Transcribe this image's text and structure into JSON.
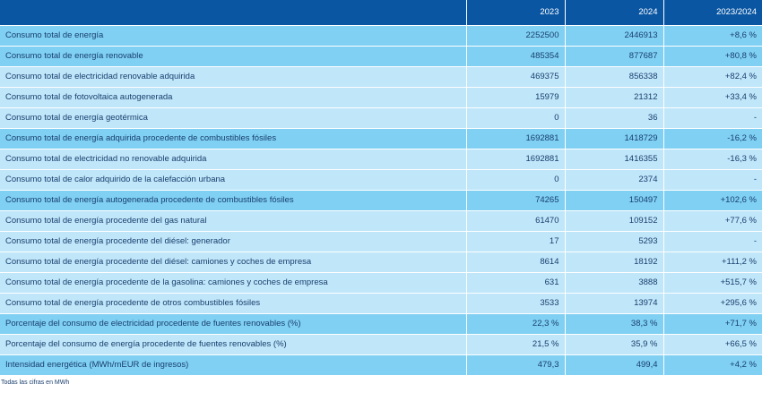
{
  "table": {
    "headers": [
      "",
      "2023",
      "2024",
      "2023/2024"
    ],
    "rows": [
      {
        "label": "Consumo total de energía",
        "v2023": "2252500",
        "v2024": "2446913",
        "change": "+8,6 %",
        "level": "1"
      },
      {
        "label": "Consumo total de energía renovable",
        "v2023": "485354",
        "v2024": "877687",
        "change": "+80,8 %",
        "level": "1"
      },
      {
        "label": "Consumo total de electricidad renovable adquirida",
        "v2023": "469375",
        "v2024": "856338",
        "change": "+82,4 %",
        "level": "2"
      },
      {
        "label": "Consumo total de fotovoltaica autogenerada",
        "v2023": "15979",
        "v2024": "21312",
        "change": "+33,4 %",
        "level": "2"
      },
      {
        "label": "Consumo total de energía geotérmica",
        "v2023": "0",
        "v2024": "36",
        "change": "-",
        "level": "2"
      },
      {
        "label": "Consumo total de energía adquirida procedente de combustibles fósiles",
        "v2023": "1692881",
        "v2024": "1418729",
        "change": "-16,2 %",
        "level": "1"
      },
      {
        "label": "Consumo total de electricidad no renovable adquirida",
        "v2023": "1692881",
        "v2024": "1416355",
        "change": "-16,3 %",
        "level": "2"
      },
      {
        "label": "Consumo total de calor adquirido de la calefacción urbana",
        "v2023": "0",
        "v2024": "2374",
        "change": "-",
        "level": "2"
      },
      {
        "label": "Consumo total de energía autogenerada procedente de combustibles fósiles",
        "v2023": "74265",
        "v2024": "150497",
        "change": "+102,6 %",
        "level": "1"
      },
      {
        "label": "Consumo total de energía procedente del gas natural",
        "v2023": "61470",
        "v2024": "109152",
        "change": "+77,6 %",
        "level": "2"
      },
      {
        "label": "Consumo total de energía procedente del diésel: generador",
        "v2023": "17",
        "v2024": "5293",
        "change": "-",
        "level": "2"
      },
      {
        "label": "Consumo total de energía procedente del diésel: camiones y coches de empresa",
        "v2023": "8614",
        "v2024": "18192",
        "change": "+111,2 %",
        "level": "2"
      },
      {
        "label": "Consumo total de energía procedente de la gasolina: camiones y coches de empresa",
        "v2023": "631",
        "v2024": "3888",
        "change": "+515,7 %",
        "level": "2"
      },
      {
        "label": "Consumo total de energía procedente de otros combustibles fósiles",
        "v2023": "3533",
        "v2024": "13974",
        "change": "+295,6 %",
        "level": "2"
      },
      {
        "label": "Porcentaje del consumo de electricidad procedente de fuentes renovables (%)",
        "v2023": "22,3 %",
        "v2024": "38,3 %",
        "change": "+71,7 %",
        "level": "1"
      },
      {
        "label": "Porcentaje del consumo de energía procedente de fuentes renovables (%)",
        "v2023": "21,5 %",
        "v2024": "35,9 %",
        "change": "+66,5 %",
        "level": "2"
      },
      {
        "label": "Intensidad energética (MWh/mEUR de ingresos)",
        "v2023": "479,3",
        "v2024": "499,4",
        "change": "+4,2 %",
        "level": "1"
      }
    ]
  },
  "footnote": "Todas las cifras en MWh",
  "colors": {
    "header_bg": "#0a56a3",
    "level1_bg": "#7fd0f3",
    "level2_bg": "#bfe6f9",
    "text": "#1a3f6e"
  }
}
